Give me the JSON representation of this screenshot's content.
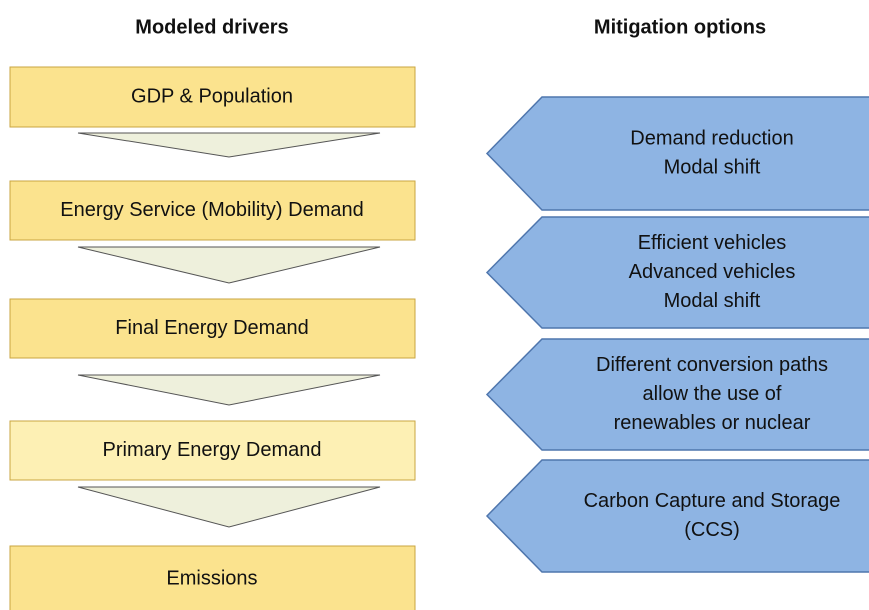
{
  "headers": {
    "drivers": "Modeled drivers",
    "options": "Mitigation options"
  },
  "drivers": [
    "GDP & Population",
    "Energy Service (Mobility) Demand",
    "Final Energy Demand",
    "Primary Energy Demand",
    "Emissions"
  ],
  "mitigation_options": [
    {
      "lines": [
        "Demand reduction",
        "Modal shift"
      ]
    },
    {
      "lines": [
        "Efficient vehicles",
        "Advanced vehicles",
        "Modal shift"
      ]
    },
    {
      "lines": [
        "Different conversion paths",
        "allow the use of",
        "renewables or nuclear"
      ]
    },
    {
      "lines": [
        "Carbon Capture and Storage",
        "(CCS)"
      ]
    }
  ]
}
